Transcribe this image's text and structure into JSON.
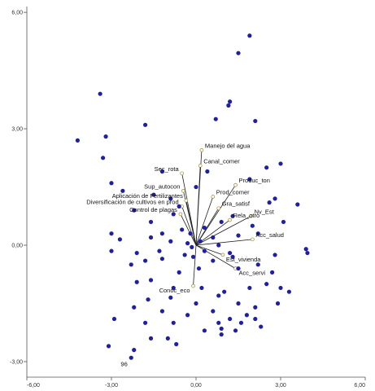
{
  "chart_data": {
    "type": "scatter",
    "title": "",
    "xlabel": "",
    "ylabel": "",
    "xlim": [
      -6,
      6
    ],
    "ylim": [
      -3.4,
      6.15
    ],
    "x_ticks": [
      -6,
      -3,
      0,
      3,
      6
    ],
    "x_tick_labels": [
      "-6,00",
      "-3,00",
      "0,00",
      "3,00",
      "6,00"
    ],
    "y_ticks": [
      -3,
      0,
      3,
      6
    ],
    "y_tick_labels": [
      "-3,00",
      "0,00",
      "3,00",
      "6,00"
    ],
    "grid": false,
    "legend": "none",
    "colors": {
      "points": "#1f1fa3",
      "vectors": "#222222",
      "vector_tips": "#fff8dc"
    },
    "observations": [
      [
        1.9,
        5.4
      ],
      [
        1.5,
        4.95
      ],
      [
        -3.4,
        3.9
      ],
      [
        -4.2,
        2.7
      ],
      [
        -3.2,
        2.8
      ],
      [
        -1.8,
        3.1
      ],
      [
        0.7,
        3.25
      ],
      [
        1.15,
        3.6
      ],
      [
        1.2,
        3.7
      ],
      [
        2.1,
        3.2
      ],
      [
        -3.3,
        2.25
      ],
      [
        -3.0,
        1.6
      ],
      [
        -1.2,
        1.9
      ],
      [
        3.0,
        2.1
      ],
      [
        2.5,
        2.0
      ],
      [
        -2.6,
        1.4
      ],
      [
        -1.5,
        1.3
      ],
      [
        -0.9,
        1.2
      ],
      [
        0.4,
        1.9
      ],
      [
        1.9,
        1.7
      ],
      [
        2.6,
        1.1
      ],
      [
        3.1,
        0.6
      ],
      [
        2.8,
        1.2
      ],
      [
        3.6,
        1.05
      ],
      [
        -0.6,
        1.0
      ],
      [
        0.0,
        1.5
      ],
      [
        2.0,
        0.5
      ],
      [
        1.5,
        0.25
      ],
      [
        1.3,
        0.75
      ],
      [
        0.9,
        0.6
      ],
      [
        -0.8,
        0.8
      ],
      [
        -2.2,
        0.9
      ],
      [
        -1.6,
        0.6
      ],
      [
        -1.2,
        0.3
      ],
      [
        -0.5,
        0.4
      ],
      [
        -3.0,
        0.3
      ],
      [
        -2.7,
        0.15
      ],
      [
        -3.0,
        -0.15
      ],
      [
        -2.1,
        -0.2
      ],
      [
        -1.6,
        0.2
      ],
      [
        -0.9,
        0.1
      ],
      [
        -0.3,
        0.05
      ],
      [
        0.3,
        0.45
      ],
      [
        0.8,
        0.0
      ],
      [
        1.2,
        -0.2
      ],
      [
        2.2,
        0.3
      ],
      [
        2.8,
        -0.25
      ],
      [
        3.9,
        -0.1
      ],
      [
        3.95,
        -0.2
      ],
      [
        -2.3,
        -0.5
      ],
      [
        -1.8,
        -0.4
      ],
      [
        -1.2,
        -0.35
      ],
      [
        -0.6,
        -0.7
      ],
      [
        0.1,
        -0.6
      ],
      [
        0.6,
        -0.4
      ],
      [
        1.5,
        -0.6
      ],
      [
        2.2,
        -0.5
      ],
      [
        2.7,
        -0.7
      ],
      [
        -2.1,
        -0.95
      ],
      [
        -1.6,
        -0.9
      ],
      [
        -0.8,
        -1.1
      ],
      [
        0.2,
        -1.1
      ],
      [
        1.0,
        -1.2
      ],
      [
        1.9,
        -1.1
      ],
      [
        2.5,
        -1.0
      ],
      [
        3.0,
        -1.1
      ],
      [
        -1.7,
        -1.4
      ],
      [
        -0.9,
        -1.35
      ],
      [
        0.0,
        -1.5
      ],
      [
        0.8,
        -1.3
      ],
      [
        1.5,
        -1.5
      ],
      [
        2.1,
        -1.6
      ],
      [
        2.9,
        -1.5
      ],
      [
        3.3,
        -1.2
      ],
      [
        -2.2,
        -1.6
      ],
      [
        -1.2,
        -1.7
      ],
      [
        -0.3,
        -1.8
      ],
      [
        0.6,
        -1.7
      ],
      [
        1.2,
        -1.9
      ],
      [
        1.8,
        -1.8
      ],
      [
        2.3,
        -2.1
      ],
      [
        -2.9,
        -1.9
      ],
      [
        -1.8,
        -2.0
      ],
      [
        -0.8,
        -2.0
      ],
      [
        0.3,
        -2.2
      ],
      [
        0.9,
        -2.3
      ],
      [
        -1.6,
        -2.4
      ],
      [
        -1.0,
        -2.4
      ],
      [
        0.8,
        -2.0
      ],
      [
        1.4,
        -2.2
      ],
      [
        -2.2,
        -2.7
      ],
      [
        -3.1,
        -2.6
      ],
      [
        -0.7,
        -2.55
      ],
      [
        -2.3,
        -2.9
      ],
      [
        0.9,
        -2.15
      ],
      [
        1.6,
        -2.0
      ],
      [
        2.1,
        -1.9
      ],
      [
        -0.4,
        -0.25
      ],
      [
        -0.1,
        -0.3
      ],
      [
        0.3,
        -0.15
      ],
      [
        0.6,
        0.2
      ],
      [
        0.15,
        0.1
      ],
      [
        -0.2,
        0.3
      ],
      [
        -0.15,
        -0.05
      ],
      [
        -1.3,
        -0.15
      ],
      [
        1.3,
        -0.3
      ]
    ],
    "vectors": [
      {
        "name": "Manejo del agua",
        "x": 0.2,
        "y": 2.45
      },
      {
        "name": "Canal_comer",
        "x": 0.15,
        "y": 2.05
      },
      {
        "name": "Sec_rota",
        "x": -0.5,
        "y": 1.85
      },
      {
        "name": "Sup_autocon",
        "x": -0.45,
        "y": 1.4
      },
      {
        "name": "Aplicación de Fertilizantes",
        "x": -0.35,
        "y": 1.15
      },
      {
        "name": "Diversificación de cultivos en prod",
        "x": -0.5,
        "y": 1.0
      },
      {
        "name": "Control de plagas",
        "x": -0.55,
        "y": 0.8
      },
      {
        "name": "Produc_ton",
        "x": 1.4,
        "y": 1.55
      },
      {
        "name": "Prod_comer",
        "x": 0.6,
        "y": 1.25
      },
      {
        "name": "Gra_satisf",
        "x": 0.8,
        "y": 0.95
      },
      {
        "name": "Rela_otro",
        "x": 1.2,
        "y": 0.65
      },
      {
        "name": "Nv_Est",
        "x": 1.95,
        "y": 0.75
      },
      {
        "name": "Acc_salud",
        "x": 2.0,
        "y": 0.15
      },
      {
        "name": "Est_vivienda",
        "x": 0.95,
        "y": -0.25
      },
      {
        "name": "Acc_servi",
        "x": 1.4,
        "y": -0.6
      },
      {
        "name": "Conoc_eco",
        "x": -0.1,
        "y": -1.05
      }
    ],
    "annotations": [
      {
        "text": "96",
        "x": -2.55,
        "y": -2.95
      }
    ]
  }
}
